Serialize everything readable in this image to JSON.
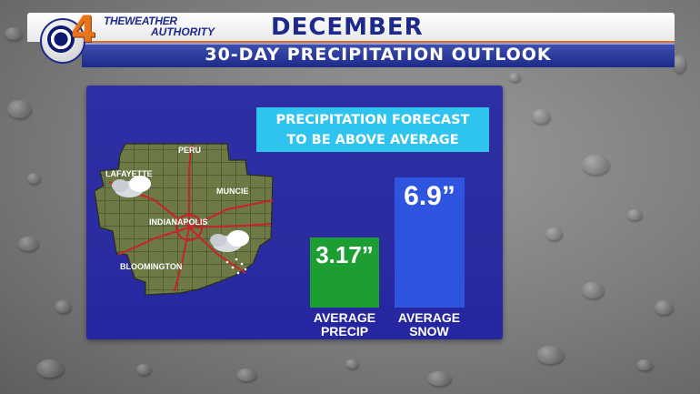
{
  "header": {
    "channel_number": "4",
    "brand_line1": "THEWEATHER",
    "brand_line2": "AUTHORITY",
    "title": "DECEMBER",
    "subtitle": "30-DAY PRECIPITATION OUTLOOK"
  },
  "headline": {
    "line1": "PRECIPITATION FORECAST",
    "line2": "TO BE ABOVE AVERAGE"
  },
  "map": {
    "cities": [
      "PERU",
      "LAFAYETTE",
      "MUNCIE",
      "INDIANAPOLIS",
      "BLOOMINGTON"
    ]
  },
  "chart_data": {
    "type": "bar",
    "categories": [
      "AVERAGE PRECIP",
      "AVERAGE SNOW"
    ],
    "values": [
      3.17,
      6.9
    ],
    "value_labels": [
      "3.17”",
      "6.9”"
    ],
    "colors": [
      "#1c9e32",
      "#2f55e0"
    ]
  },
  "bars": {
    "precip_value": "3.17”",
    "precip_label_1": "AVERAGE",
    "precip_label_2": "PRECIP",
    "snow_value": "6.9”",
    "snow_label_1": "AVERAGE",
    "snow_label_2": "SNOW"
  },
  "colors": {
    "header_blue": "#1d2a8a",
    "accent_orange": "#e07020",
    "panel_blue": "#2e2fa4",
    "headline_cyan": "#2ec4ee",
    "precip_green": "#1c9e32",
    "snow_blue": "#2f55e0"
  }
}
